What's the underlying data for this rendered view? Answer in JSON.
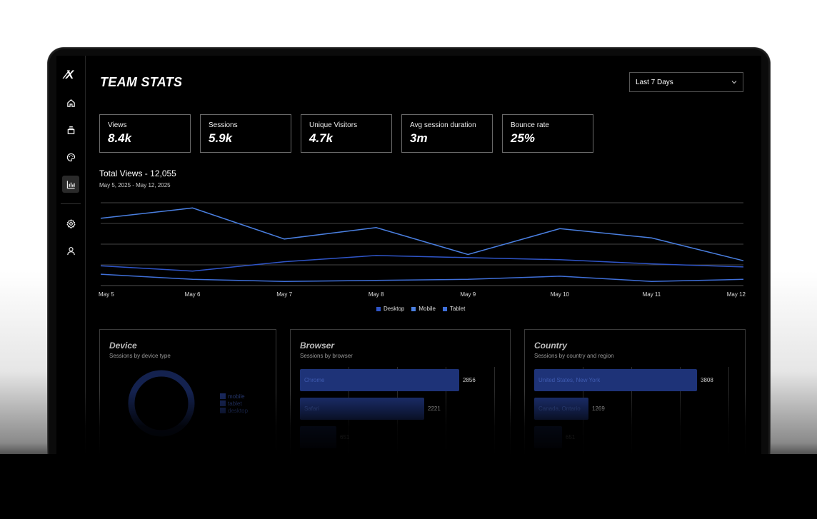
{
  "app": {
    "logo_text": "⁄X",
    "title": "TEAM STATS",
    "range_select": {
      "value": "Last 7 Days"
    }
  },
  "sidebar": {
    "items": [
      {
        "name": "home",
        "icon": "home-icon"
      },
      {
        "name": "layers",
        "icon": "layers-icon"
      },
      {
        "name": "palette",
        "icon": "palette-icon"
      },
      {
        "name": "analytics",
        "icon": "bar-chart-icon",
        "active": true
      },
      {
        "name": "settings",
        "icon": "gear-icon"
      },
      {
        "name": "profile",
        "icon": "user-icon"
      }
    ]
  },
  "kpis": [
    {
      "label": "Views",
      "value": "8.4k"
    },
    {
      "label": "Sessions",
      "value": "5.9k"
    },
    {
      "label": "Unique Visitors",
      "value": "4.7k"
    },
    {
      "label": "Avg session duration",
      "value": "3m"
    },
    {
      "label": "Bounce rate",
      "value": "25%"
    }
  ],
  "total_views": {
    "title": "Total Views - 12,055",
    "subtitle": "May 5, 2025 - May 12, 2025"
  },
  "colors": {
    "desktop": "#2f55c8",
    "mobile": "#4a7fe0",
    "tablet": "#3f6fd8"
  },
  "chart_data": {
    "type": "line",
    "title": "Total Views - 12,055",
    "x": [
      "May 5",
      "May 6",
      "May 7",
      "May 8",
      "May 9",
      "May 10",
      "May 11",
      "May 12"
    ],
    "ylim": [
      0,
      4
    ],
    "grid": true,
    "legend_placement": "bottom",
    "series": [
      {
        "name": "Desktop",
        "values": [
          0.95,
          0.7,
          1.15,
          1.45,
          1.35,
          1.25,
          1.05,
          0.9
        ]
      },
      {
        "name": "Mobile",
        "values": [
          3.25,
          3.75,
          2.25,
          2.8,
          1.5,
          2.75,
          2.3,
          1.2
        ]
      },
      {
        "name": "Tablet",
        "values": [
          0.55,
          0.3,
          0.2,
          0.25,
          0.3,
          0.45,
          0.2,
          0.3
        ]
      }
    ]
  },
  "panels": {
    "device": {
      "title": "Device",
      "subtitle": "Sessions by device type",
      "legend": [
        "mobile",
        "tablet",
        "desktop"
      ]
    },
    "browser": {
      "title": "Browser",
      "subtitle": "Sessions by browser",
      "bars": [
        {
          "label": "Chrome",
          "value": 2856
        },
        {
          "label": "Safari",
          "value": 2221
        },
        {
          "label": "",
          "value": 651
        }
      ],
      "value_labels": [
        "2856",
        "2221",
        "651"
      ],
      "max": 3300
    },
    "country": {
      "title": "Country",
      "subtitle": "Sessions by country and region",
      "bars": [
        {
          "label": "United States, New York",
          "value": 3808
        },
        {
          "label": "Canada, Ontario",
          "value": 1269
        },
        {
          "label": "",
          "value": 651
        }
      ],
      "value_labels": [
        "3808",
        "1269",
        "651"
      ],
      "max": 4300
    }
  }
}
